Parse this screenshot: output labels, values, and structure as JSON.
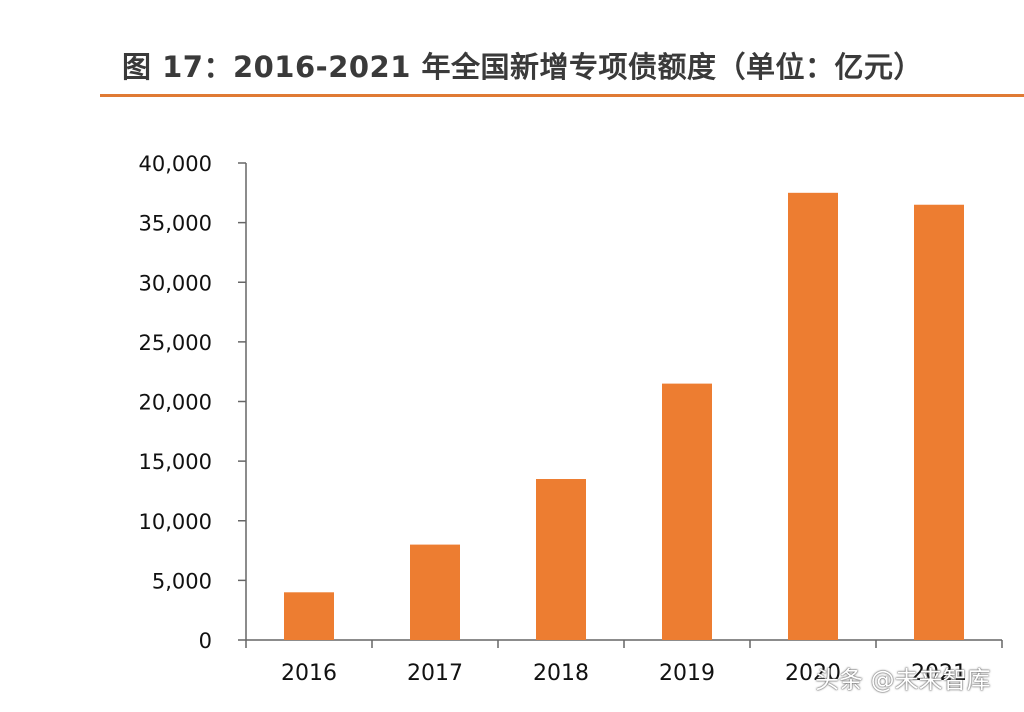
{
  "title": "图 17：2016-2021 年全国新增专项债额度（单位：亿元）",
  "watermark": "头条 @未来智库",
  "colors": {
    "bar": "#ED7D31",
    "accent_rule": "#E07A34",
    "axis": "#666666"
  },
  "chart_data": {
    "type": "bar",
    "title": "图 17：2016-2021 年全国新增专项债额度（单位：亿元）",
    "categories": [
      "2016",
      "2017",
      "2018",
      "2019",
      "2020",
      "2021"
    ],
    "values": [
      4000,
      8000,
      13500,
      21500,
      37500,
      36500
    ],
    "ylim": [
      0,
      40000
    ],
    "yticks": [
      "0",
      "5,000",
      "10,000",
      "15,000",
      "20,000",
      "25,000",
      "30,000",
      "35,000",
      "40,000"
    ],
    "xlabel": "",
    "ylabel": "",
    "grid": false,
    "legend": "none"
  }
}
